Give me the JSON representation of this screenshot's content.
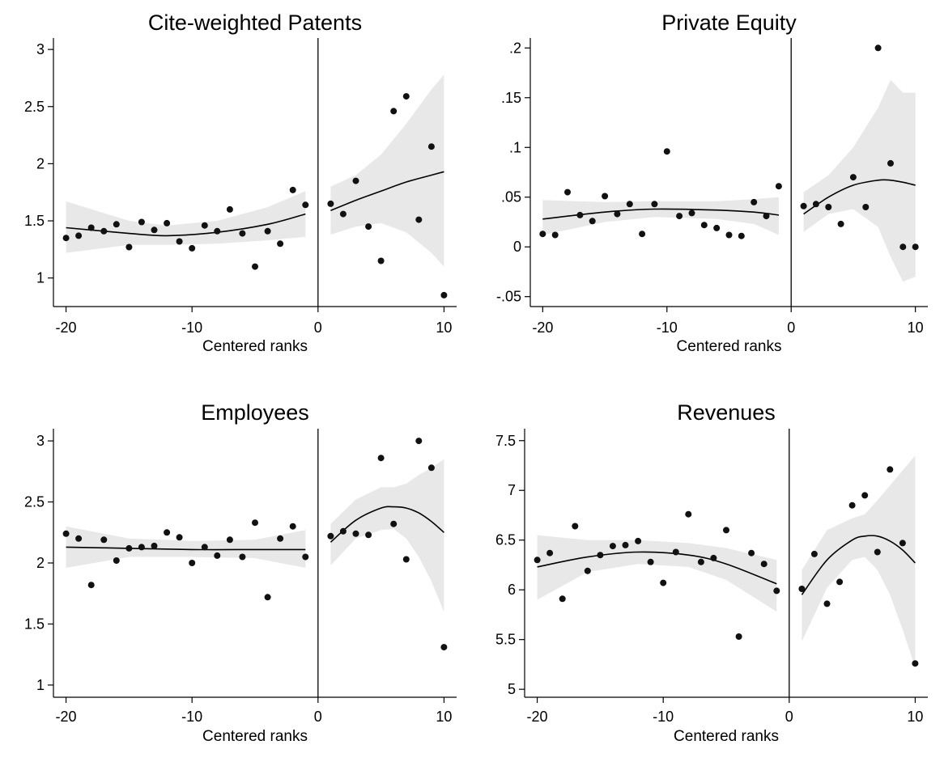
{
  "chart_data": [
    {
      "type": "scatter",
      "title": "Cite-weighted Patents",
      "xlabel": "Centered ranks",
      "ylabel": "",
      "xlim": [
        -21,
        11
      ],
      "ylim": [
        0.75,
        3.1
      ],
      "xticks": [
        -20,
        -10,
        0,
        10
      ],
      "xtick_labels": [
        "-20",
        "-10",
        "0",
        "10"
      ],
      "yticks": [
        1,
        1.5,
        2,
        2.5,
        3
      ],
      "ytick_labels": [
        "1",
        "1.5",
        "2",
        "2.5",
        "3"
      ],
      "cutoff": 0,
      "points": [
        {
          "x": -20,
          "y": 1.35
        },
        {
          "x": -19,
          "y": 1.37
        },
        {
          "x": -18,
          "y": 1.44
        },
        {
          "x": -17,
          "y": 1.41
        },
        {
          "x": -16,
          "y": 1.47
        },
        {
          "x": -15,
          "y": 1.27
        },
        {
          "x": -14,
          "y": 1.49
        },
        {
          "x": -13,
          "y": 1.42
        },
        {
          "x": -12,
          "y": 1.48
        },
        {
          "x": -11,
          "y": 1.32
        },
        {
          "x": -10,
          "y": 1.26
        },
        {
          "x": -9,
          "y": 1.46
        },
        {
          "x": -8,
          "y": 1.41
        },
        {
          "x": -7,
          "y": 1.6
        },
        {
          "x": -6,
          "y": 1.39
        },
        {
          "x": -5,
          "y": 1.1
        },
        {
          "x": -4,
          "y": 1.41
        },
        {
          "x": -3,
          "y": 1.3
        },
        {
          "x": -2,
          "y": 1.77
        },
        {
          "x": -1,
          "y": 1.64
        },
        {
          "x": 1,
          "y": 1.65
        },
        {
          "x": 2,
          "y": 1.56
        },
        {
          "x": 3,
          "y": 1.85
        },
        {
          "x": 4,
          "y": 1.45
        },
        {
          "x": 5,
          "y": 1.15
        },
        {
          "x": 6,
          "y": 2.46
        },
        {
          "x": 7,
          "y": 2.59
        },
        {
          "x": 8,
          "y": 1.51
        },
        {
          "x": 9,
          "y": 2.15
        },
        {
          "x": 10,
          "y": 0.85
        }
      ],
      "fit_left": [
        {
          "x": -20,
          "y": 1.44,
          "lo": 1.22,
          "hi": 1.67
        },
        {
          "x": -15,
          "y": 1.39,
          "lo": 1.29,
          "hi": 1.5
        },
        {
          "x": -12,
          "y": 1.37,
          "lo": 1.29,
          "hi": 1.46
        },
        {
          "x": -8,
          "y": 1.4,
          "lo": 1.3,
          "hi": 1.5
        },
        {
          "x": -4,
          "y": 1.47,
          "lo": 1.33,
          "hi": 1.62
        },
        {
          "x": -1,
          "y": 1.56,
          "lo": 1.36,
          "hi": 1.76
        }
      ],
      "fit_right": [
        {
          "x": 1,
          "y": 1.59,
          "lo": 1.38,
          "hi": 1.8
        },
        {
          "x": 3,
          "y": 1.68,
          "lo": 1.45,
          "hi": 1.9
        },
        {
          "x": 5,
          "y": 1.76,
          "lo": 1.48,
          "hi": 2.08
        },
        {
          "x": 7,
          "y": 1.84,
          "lo": 1.4,
          "hi": 2.35
        },
        {
          "x": 9,
          "y": 1.9,
          "lo": 1.22,
          "hi": 2.65
        },
        {
          "x": 10,
          "y": 1.93,
          "lo": 1.1,
          "hi": 2.78
        }
      ]
    },
    {
      "type": "scatter",
      "title": "Private Equity",
      "xlabel": "Centered ranks",
      "ylabel": "",
      "xlim": [
        -21,
        11
      ],
      "ylim": [
        -0.06,
        0.21
      ],
      "xticks": [
        -20,
        -10,
        0,
        10
      ],
      "xtick_labels": [
        "-20",
        "-10",
        "0",
        "10"
      ],
      "yticks": [
        -0.05,
        0,
        0.05,
        0.1,
        0.15,
        0.2
      ],
      "ytick_labels": [
        "-.05",
        "0",
        ".05",
        ".1",
        ".15",
        ".2"
      ],
      "cutoff": 0,
      "points": [
        {
          "x": -20,
          "y": 0.013
        },
        {
          "x": -19,
          "y": 0.012
        },
        {
          "x": -18,
          "y": 0.055
        },
        {
          "x": -17,
          "y": 0.032
        },
        {
          "x": -16,
          "y": 0.026
        },
        {
          "x": -15,
          "y": 0.051
        },
        {
          "x": -14,
          "y": 0.033
        },
        {
          "x": -13,
          "y": 0.043
        },
        {
          "x": -12,
          "y": 0.013
        },
        {
          "x": -11,
          "y": 0.043
        },
        {
          "x": -10,
          "y": 0.096
        },
        {
          "x": -9,
          "y": 0.031
        },
        {
          "x": -8,
          "y": 0.034
        },
        {
          "x": -7,
          "y": 0.022
        },
        {
          "x": -6,
          "y": 0.019
        },
        {
          "x": -5,
          "y": 0.012
        },
        {
          "x": -4,
          "y": 0.011
        },
        {
          "x": -3,
          "y": 0.045
        },
        {
          "x": -2,
          "y": 0.031
        },
        {
          "x": -1,
          "y": 0.061
        },
        {
          "x": 1,
          "y": 0.041
        },
        {
          "x": 2,
          "y": 0.043
        },
        {
          "x": 3,
          "y": 0.04
        },
        {
          "x": 4,
          "y": 0.023
        },
        {
          "x": 5,
          "y": 0.07
        },
        {
          "x": 6,
          "y": 0.04
        },
        {
          "x": 7,
          "y": 0.2
        },
        {
          "x": 8,
          "y": 0.084
        },
        {
          "x": 9,
          "y": 0.0
        },
        {
          "x": 10,
          "y": 0.0
        }
      ],
      "fit_left": [
        {
          "x": -20,
          "y": 0.028,
          "lo": 0.012,
          "hi": 0.047
        },
        {
          "x": -15,
          "y": 0.035,
          "lo": 0.025,
          "hi": 0.045
        },
        {
          "x": -11,
          "y": 0.038,
          "lo": 0.03,
          "hi": 0.046
        },
        {
          "x": -6,
          "y": 0.037,
          "lo": 0.028,
          "hi": 0.046
        },
        {
          "x": -3,
          "y": 0.035,
          "lo": 0.023,
          "hi": 0.048
        },
        {
          "x": -1,
          "y": 0.032,
          "lo": 0.012,
          "hi": 0.05
        }
      ],
      "fit_right": [
        {
          "x": 1,
          "y": 0.033,
          "lo": 0.015,
          "hi": 0.055
        },
        {
          "x": 3,
          "y": 0.05,
          "lo": 0.033,
          "hi": 0.072
        },
        {
          "x": 5,
          "y": 0.062,
          "lo": 0.038,
          "hi": 0.1
        },
        {
          "x": 7,
          "y": 0.067,
          "lo": 0.02,
          "hi": 0.14
        },
        {
          "x": 8,
          "y": 0.067,
          "lo": -0.01,
          "hi": 0.168
        },
        {
          "x": 9,
          "y": 0.065,
          "lo": -0.035,
          "hi": 0.155
        },
        {
          "x": 10,
          "y": 0.062,
          "lo": -0.03,
          "hi": 0.155
        }
      ]
    },
    {
      "type": "scatter",
      "title": "Employees",
      "xlabel": "Centered ranks",
      "ylabel": "",
      "xlim": [
        -21,
        11
      ],
      "ylim": [
        0.9,
        3.1
      ],
      "xticks": [
        -20,
        -10,
        0,
        10
      ],
      "xtick_labels": [
        "-20",
        "-10",
        "0",
        "10"
      ],
      "yticks": [
        1,
        1.5,
        2,
        2.5,
        3
      ],
      "ytick_labels": [
        "1",
        "1.5",
        "2",
        "2.5",
        "3"
      ],
      "cutoff": 0,
      "points": [
        {
          "x": -20,
          "y": 2.24
        },
        {
          "x": -19,
          "y": 2.2
        },
        {
          "x": -18,
          "y": 1.82
        },
        {
          "x": -17,
          "y": 2.19
        },
        {
          "x": -16,
          "y": 2.02
        },
        {
          "x": -15,
          "y": 2.12
        },
        {
          "x": -14,
          "y": 2.13
        },
        {
          "x": -13,
          "y": 2.14
        },
        {
          "x": -12,
          "y": 2.25
        },
        {
          "x": -11,
          "y": 2.21
        },
        {
          "x": -10,
          "y": 2.0
        },
        {
          "x": -9,
          "y": 2.13
        },
        {
          "x": -8,
          "y": 2.06
        },
        {
          "x": -7,
          "y": 2.19
        },
        {
          "x": -6,
          "y": 2.05
        },
        {
          "x": -5,
          "y": 2.33
        },
        {
          "x": -4,
          "y": 1.72
        },
        {
          "x": -3,
          "y": 2.2
        },
        {
          "x": -2,
          "y": 2.3
        },
        {
          "x": -1,
          "y": 2.05
        },
        {
          "x": 1,
          "y": 2.22
        },
        {
          "x": 2,
          "y": 2.26
        },
        {
          "x": 3,
          "y": 2.24
        },
        {
          "x": 4,
          "y": 2.23
        },
        {
          "x": 5,
          "y": 2.86
        },
        {
          "x": 6,
          "y": 2.32
        },
        {
          "x": 7,
          "y": 2.03
        },
        {
          "x": 8,
          "y": 3.0
        },
        {
          "x": 9,
          "y": 2.78
        },
        {
          "x": 10,
          "y": 1.31
        }
      ],
      "fit_left": [
        {
          "x": -20,
          "y": 2.13,
          "lo": 1.96,
          "hi": 2.3
        },
        {
          "x": -15,
          "y": 2.12,
          "lo": 2.05,
          "hi": 2.2
        },
        {
          "x": -10,
          "y": 2.11,
          "lo": 2.05,
          "hi": 2.18
        },
        {
          "x": -5,
          "y": 2.11,
          "lo": 2.04,
          "hi": 2.19
        },
        {
          "x": -1,
          "y": 2.11,
          "lo": 1.96,
          "hi": 2.27
        }
      ],
      "fit_right": [
        {
          "x": 1,
          "y": 2.17,
          "lo": 1.98,
          "hi": 2.32
        },
        {
          "x": 3,
          "y": 2.35,
          "lo": 2.2,
          "hi": 2.52
        },
        {
          "x": 5,
          "y": 2.45,
          "lo": 2.27,
          "hi": 2.62
        },
        {
          "x": 6,
          "y": 2.46,
          "lo": 2.28,
          "hi": 2.62
        },
        {
          "x": 7,
          "y": 2.45,
          "lo": 2.2,
          "hi": 2.65
        },
        {
          "x": 8,
          "y": 2.41,
          "lo": 2.05,
          "hi": 2.72
        },
        {
          "x": 9,
          "y": 2.34,
          "lo": 1.85,
          "hi": 2.78
        },
        {
          "x": 10,
          "y": 2.25,
          "lo": 1.6,
          "hi": 2.85
        }
      ]
    },
    {
      "type": "scatter",
      "title": "Revenues",
      "xlabel": "Centered ranks",
      "ylabel": "",
      "xlim": [
        -21,
        11
      ],
      "ylim": [
        4.92,
        7.62
      ],
      "xticks": [
        -20,
        -10,
        0,
        10
      ],
      "xtick_labels": [
        "-20",
        "-10",
        "0",
        "10"
      ],
      "yticks": [
        5,
        5.5,
        6,
        6.5,
        7,
        7.5
      ],
      "ytick_labels": [
        "5",
        "5.5",
        "6",
        "6.5",
        "7",
        "7.5"
      ],
      "cutoff": 0,
      "points": [
        {
          "x": -20,
          "y": 6.3
        },
        {
          "x": -19,
          "y": 6.37
        },
        {
          "x": -18,
          "y": 5.91
        },
        {
          "x": -17,
          "y": 6.64
        },
        {
          "x": -16,
          "y": 6.19
        },
        {
          "x": -15,
          "y": 6.35
        },
        {
          "x": -14,
          "y": 6.44
        },
        {
          "x": -13,
          "y": 6.45
        },
        {
          "x": -12,
          "y": 6.49
        },
        {
          "x": -11,
          "y": 6.28
        },
        {
          "x": -10,
          "y": 6.07
        },
        {
          "x": -9,
          "y": 6.38
        },
        {
          "x": -8,
          "y": 6.76
        },
        {
          "x": -7,
          "y": 6.28
        },
        {
          "x": -6,
          "y": 6.32
        },
        {
          "x": -5,
          "y": 6.6
        },
        {
          "x": -4,
          "y": 5.53
        },
        {
          "x": -3,
          "y": 6.37
        },
        {
          "x": -2,
          "y": 6.26
        },
        {
          "x": -1,
          "y": 5.99
        },
        {
          "x": 1,
          "y": 6.01
        },
        {
          "x": 2,
          "y": 6.36
        },
        {
          "x": 3,
          "y": 5.86
        },
        {
          "x": 4,
          "y": 6.08
        },
        {
          "x": 5,
          "y": 6.85
        },
        {
          "x": 6,
          "y": 6.95
        },
        {
          "x": 7,
          "y": 6.38
        },
        {
          "x": 8,
          "y": 7.21
        },
        {
          "x": 9,
          "y": 6.47
        },
        {
          "x": 10,
          "y": 5.26
        }
      ],
      "fit_left": [
        {
          "x": -20,
          "y": 6.23,
          "lo": 5.9,
          "hi": 6.55
        },
        {
          "x": -16,
          "y": 6.33,
          "lo": 6.18,
          "hi": 6.5
        },
        {
          "x": -12,
          "y": 6.38,
          "lo": 6.26,
          "hi": 6.5
        },
        {
          "x": -8,
          "y": 6.35,
          "lo": 6.23,
          "hi": 6.47
        },
        {
          "x": -5,
          "y": 6.26,
          "lo": 6.1,
          "hi": 6.42
        },
        {
          "x": -1,
          "y": 6.06,
          "lo": 5.78,
          "hi": 6.3
        }
      ],
      "fit_right": [
        {
          "x": 1,
          "y": 5.95,
          "lo": 5.48,
          "hi": 6.2
        },
        {
          "x": 3,
          "y": 6.3,
          "lo": 6.02,
          "hi": 6.6
        },
        {
          "x": 5,
          "y": 6.5,
          "lo": 6.3,
          "hi": 6.72
        },
        {
          "x": 6,
          "y": 6.54,
          "lo": 6.33,
          "hi": 6.76
        },
        {
          "x": 7,
          "y": 6.54,
          "lo": 6.2,
          "hi": 6.9
        },
        {
          "x": 8,
          "y": 6.49,
          "lo": 5.95,
          "hi": 7.05
        },
        {
          "x": 9,
          "y": 6.4,
          "lo": 5.6,
          "hi": 7.2
        },
        {
          "x": 10,
          "y": 6.27,
          "lo": 5.22,
          "hi": 7.35
        }
      ]
    }
  ]
}
